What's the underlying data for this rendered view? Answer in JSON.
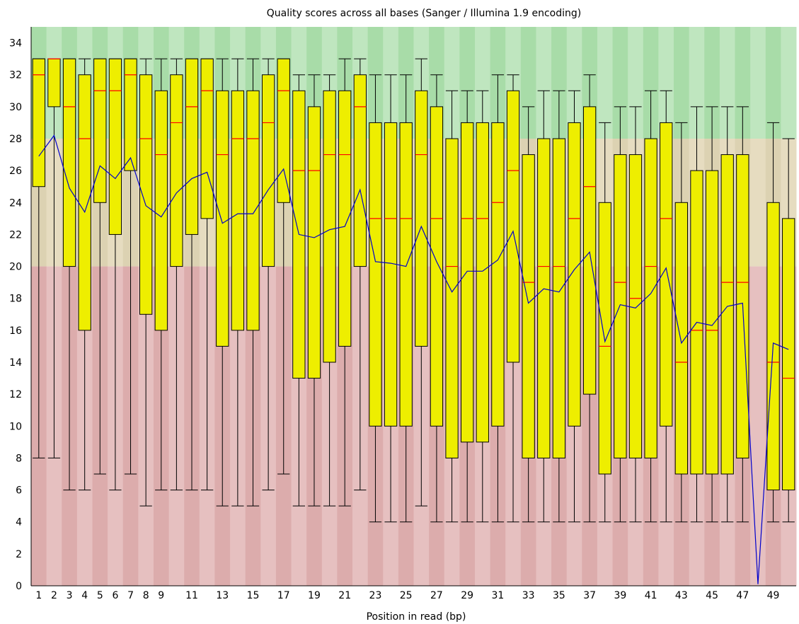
{
  "chart_data": {
    "type": "box",
    "title": "Quality scores across all bases (Sanger / Illumina 1.9 encoding)",
    "xlabel": "Position in read (bp)",
    "ylabel": "",
    "ylim": [
      0,
      35
    ],
    "y_ticks": [
      0,
      2,
      4,
      6,
      8,
      10,
      12,
      14,
      16,
      18,
      20,
      22,
      24,
      26,
      28,
      30,
      32,
      34
    ],
    "x_tick_labels": [
      "1",
      "2",
      "3",
      "4",
      "5",
      "6",
      "7",
      "8",
      "9",
      "11",
      "13",
      "15",
      "17",
      "19",
      "21",
      "23",
      "25",
      "27",
      "29",
      "31",
      "33",
      "35",
      "37",
      "39",
      "41",
      "43",
      "45",
      "47",
      "49"
    ],
    "x_tick_positions": [
      1,
      2,
      3,
      4,
      5,
      6,
      7,
      8,
      9,
      11,
      13,
      15,
      17,
      19,
      21,
      23,
      25,
      27,
      29,
      31,
      33,
      35,
      37,
      39,
      41,
      43,
      45,
      47,
      49
    ],
    "grid": false,
    "quality_zones": [
      {
        "from": 28,
        "to": 35,
        "color": "#bfe6bf",
        "alt_color": "#a8dca8"
      },
      {
        "from": 20,
        "to": 28,
        "color": "#e6dcc0",
        "alt_color": "#dcd2b2"
      },
      {
        "from": 0,
        "to": 20,
        "color": "#e6c0c0",
        "alt_color": "#dcacac"
      }
    ],
    "colors": {
      "box": "#eeee00",
      "median": "#ff0000",
      "mean": "#0000cc",
      "whisker": "#000000"
    },
    "positions": [
      1,
      2,
      3,
      4,
      5,
      6,
      7,
      8,
      9,
      10,
      11,
      12,
      13,
      14,
      15,
      16,
      17,
      18,
      19,
      20,
      21,
      22,
      23,
      24,
      25,
      26,
      27,
      28,
      29,
      30,
      31,
      32,
      33,
      34,
      35,
      36,
      37,
      38,
      39,
      40,
      41,
      42,
      43,
      44,
      45,
      46,
      47,
      48,
      49,
      50
    ],
    "lower_whisker": [
      8,
      8,
      6,
      6,
      7,
      6,
      7,
      5,
      6,
      6,
      6,
      6,
      5,
      5,
      5,
      6,
      7,
      5,
      5,
      5,
      5,
      6,
      4,
      4,
      4,
      5,
      4,
      4,
      4,
      4,
      4,
      4,
      4,
      4,
      4,
      4,
      4,
      4,
      4,
      4,
      4,
      4,
      4,
      4,
      4,
      4,
      4,
      null,
      4,
      4
    ],
    "q1": [
      25,
      30,
      20,
      16,
      24,
      22,
      26,
      17,
      16,
      20,
      22,
      23,
      15,
      16,
      16,
      20,
      24,
      13,
      13,
      14,
      15,
      20,
      10,
      10,
      10,
      15,
      10,
      8,
      9,
      9,
      10,
      14,
      8,
      8,
      8,
      10,
      12,
      7,
      8,
      8,
      8,
      10,
      7,
      7,
      7,
      7,
      8,
      null,
      6,
      6
    ],
    "median": [
      32,
      33,
      30,
      28,
      31,
      31,
      32,
      28,
      27,
      29,
      30,
      31,
      27,
      28,
      28,
      29,
      31,
      26,
      26,
      27,
      27,
      30,
      23,
      23,
      23,
      27,
      23,
      20,
      23,
      23,
      24,
      26,
      19,
      20,
      20,
      23,
      25,
      15,
      19,
      18,
      20,
      23,
      14,
      16,
      16,
      19,
      19,
      null,
      14,
      13
    ],
    "q3": [
      33,
      33,
      33,
      32,
      33,
      33,
      33,
      32,
      31,
      32,
      33,
      33,
      31,
      31,
      31,
      32,
      33,
      31,
      30,
      31,
      31,
      32,
      29,
      29,
      29,
      31,
      30,
      28,
      29,
      29,
      29,
      31,
      27,
      28,
      28,
      29,
      30,
      24,
      27,
      27,
      28,
      29,
      24,
      26,
      26,
      27,
      27,
      null,
      24,
      23
    ],
    "upper_whisker": [
      33,
      33,
      33,
      33,
      33,
      33,
      33,
      33,
      33,
      33,
      33,
      33,
      33,
      33,
      33,
      33,
      33,
      32,
      32,
      32,
      33,
      33,
      32,
      32,
      32,
      33,
      32,
      31,
      31,
      31,
      32,
      32,
      30,
      31,
      31,
      31,
      32,
      29,
      30,
      30,
      31,
      31,
      29,
      30,
      30,
      30,
      30,
      null,
      29,
      28
    ],
    "mean": [
      26.9,
      28.2,
      24.9,
      23.4,
      26.3,
      25.5,
      26.8,
      23.8,
      23.1,
      24.6,
      25.5,
      25.9,
      22.7,
      23.3,
      23.3,
      24.8,
      26.1,
      22.0,
      21.8,
      22.3,
      22.5,
      24.8,
      20.3,
      20.2,
      20.0,
      22.5,
      20.3,
      18.4,
      19.7,
      19.7,
      20.4,
      22.2,
      17.7,
      18.6,
      18.4,
      19.8,
      20.9,
      15.3,
      17.6,
      17.4,
      18.3,
      19.9,
      15.2,
      16.5,
      16.3,
      17.5,
      17.7,
      0.1,
      15.2,
      14.8
    ]
  }
}
